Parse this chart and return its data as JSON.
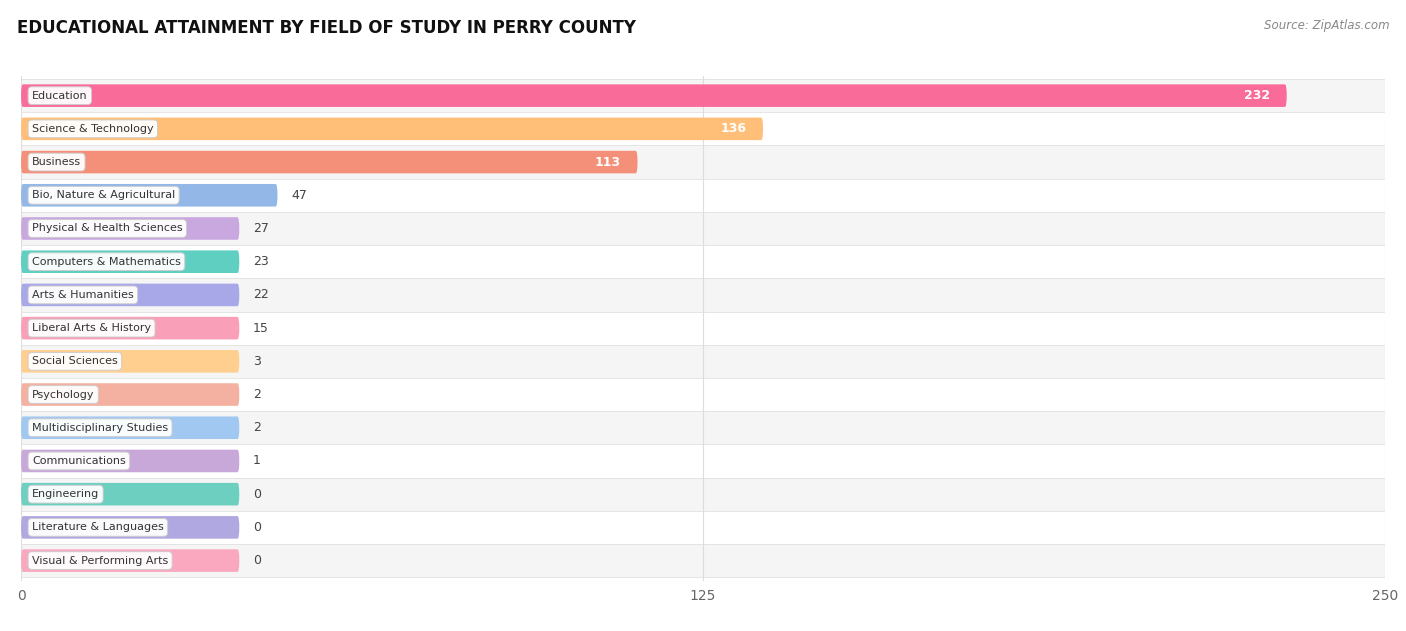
{
  "title": "EDUCATIONAL ATTAINMENT BY FIELD OF STUDY IN PERRY COUNTY",
  "source": "Source: ZipAtlas.com",
  "categories": [
    "Education",
    "Science & Technology",
    "Business",
    "Bio, Nature & Agricultural",
    "Physical & Health Sciences",
    "Computers & Mathematics",
    "Arts & Humanities",
    "Liberal Arts & History",
    "Social Sciences",
    "Psychology",
    "Multidisciplinary Studies",
    "Communications",
    "Engineering",
    "Literature & Languages",
    "Visual & Performing Arts"
  ],
  "values": [
    232,
    136,
    113,
    47,
    27,
    23,
    22,
    15,
    3,
    2,
    2,
    1,
    0,
    0,
    0
  ],
  "bar_colors": [
    "#F96B99",
    "#FFBF78",
    "#F4907A",
    "#93B8E8",
    "#C9A8E0",
    "#5ECFC0",
    "#A8A8E8",
    "#F9A0B8",
    "#FFCF8F",
    "#F4B0A0",
    "#A0C8F0",
    "#C8A8D8",
    "#6CCFC0",
    "#B0A8E0",
    "#F9A8C0"
  ],
  "xlim": [
    0,
    250
  ],
  "xticks": [
    0,
    125,
    250
  ],
  "background_color": "#FFFFFF",
  "row_bg_even": "#FFFFFF",
  "row_bg_odd": "#F5F5F5",
  "grid_color": "#DDDDDD",
  "title_fontsize": 12,
  "bar_height": 0.68,
  "min_bar_display": 40
}
